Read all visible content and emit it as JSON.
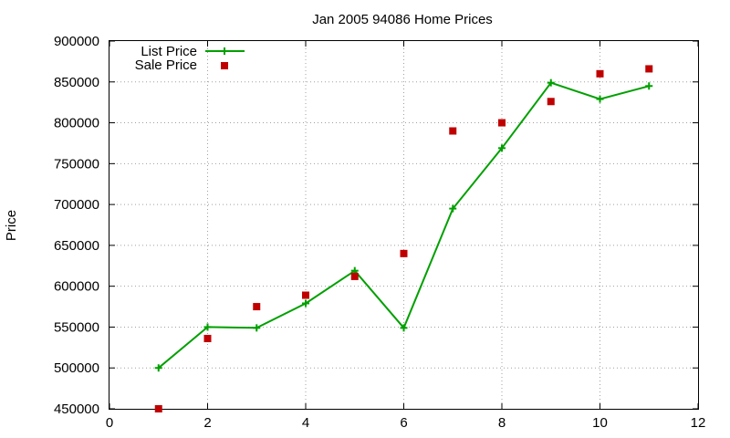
{
  "chart_data": {
    "type": "line",
    "title": "Jan 2005 94086 Home Prices",
    "xlabel": "",
    "ylabel": "Price",
    "xlim": [
      0,
      12
    ],
    "ylim": [
      450000,
      900000
    ],
    "x_ticks": [
      "0",
      "2",
      "4",
      "6",
      "8",
      "10",
      "12"
    ],
    "y_ticks": [
      "450000",
      "500000",
      "550000",
      "600000",
      "650000",
      "700000",
      "750000",
      "800000",
      "850000",
      "900000"
    ],
    "grid": true,
    "legend_position": "top-left",
    "series": [
      {
        "name": "List Price",
        "style": "line with plus markers",
        "color": "#00a000",
        "x": [
          1,
          2,
          3,
          4,
          5,
          6,
          7,
          8,
          9,
          10,
          11
        ],
        "values": [
          500000,
          550000,
          549000,
          579000,
          619000,
          549000,
          695000,
          769000,
          849000,
          829000,
          845000
        ]
      },
      {
        "name": "Sale Price",
        "style": "square markers",
        "color": "#c00000",
        "x": [
          1,
          2,
          3,
          4,
          5,
          6,
          7,
          8,
          9,
          10,
          11
        ],
        "values": [
          450000,
          536000,
          575000,
          589000,
          612000,
          640000,
          790000,
          800000,
          826000,
          860000,
          866000
        ]
      }
    ]
  }
}
